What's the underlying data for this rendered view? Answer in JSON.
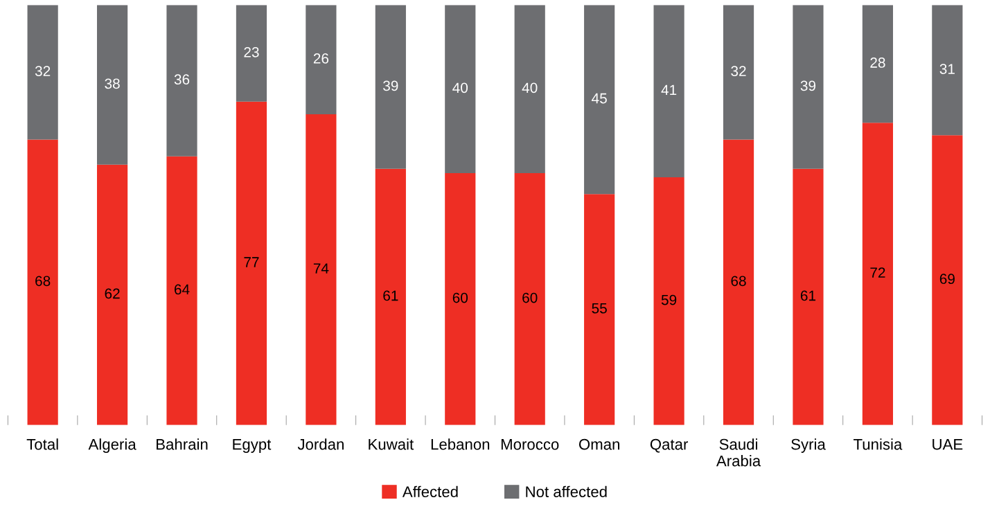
{
  "chart_data": {
    "type": "bar",
    "stacked": true,
    "data_labels": true,
    "legend": "bottom",
    "grid": false,
    "categories": [
      "Total",
      "Algeria",
      "Bahrain",
      "Egypt",
      "Jordan",
      "Kuwait",
      "Lebanon",
      "Morocco",
      "Oman",
      "Qatar",
      "Saudi Arabia",
      "Syria",
      "Tunisia",
      "UAE"
    ],
    "series": [
      {
        "name": "Affected",
        "color": "#ee2e24",
        "values": [
          68,
          62,
          64,
          77,
          74,
          61,
          60,
          60,
          55,
          59,
          68,
          61,
          72,
          69
        ]
      },
      {
        "name": "Not affected",
        "color": "#6d6e71",
        "values": [
          32,
          38,
          36,
          23,
          26,
          39,
          40,
          40,
          45,
          41,
          32,
          39,
          28,
          31
        ]
      }
    ]
  }
}
